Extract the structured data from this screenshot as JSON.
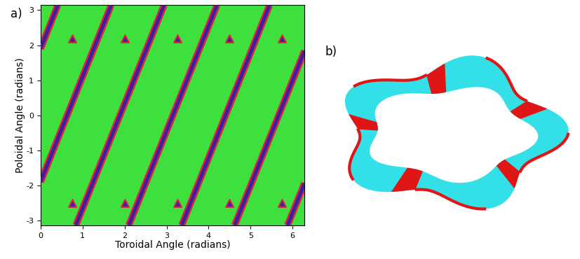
{
  "chart_data": [
    {
      "type": "line",
      "title": "a)",
      "x_label": "Toroidal Angle (radians)",
      "y_label": "Poloidal Angle (radians)",
      "xlim": [
        0,
        6.2832
      ],
      "ylim": [
        -3.1416,
        3.1416
      ],
      "xticks": [
        0,
        1,
        2,
        3,
        4,
        5,
        6
      ],
      "yticks": [
        -3,
        -2,
        -1,
        0,
        1,
        2,
        3
      ],
      "color": "#3ee03e",
      "series": [
        {
          "color": "#3a1fa0",
          "x": [
            0,
            0.41
          ],
          "values": [
            1.9,
            3.1416
          ]
        },
        {
          "color": "#3a1fa0",
          "x": [
            0,
            1.68
          ],
          "values": [
            -1.9,
            3.1416
          ]
        },
        {
          "color": "#3a1fa0",
          "x": [
            0.84,
            2.94
          ],
          "values": [
            -3.1416,
            3.1416
          ]
        },
        {
          "color": "#3a1fa0",
          "x": [
            2.1,
            4.2
          ],
          "values": [
            -3.1416,
            3.1416
          ]
        },
        {
          "color": "#3a1fa0",
          "x": [
            3.36,
            5.45
          ],
          "values": [
            -3.1416,
            3.1416
          ]
        },
        {
          "color": "#3a1fa0",
          "x": [
            4.62,
            6.2832
          ],
          "values": [
            -3.1416,
            1.84
          ]
        },
        {
          "color": "#3a1fa0",
          "x": [
            5.88,
            6.2832
          ],
          "values": [
            -3.1416,
            -1.94
          ]
        },
        {
          "type": "scatter",
          "marker": "^",
          "color": "#3a1fa0",
          "x": [
            0.75,
            2.0,
            3.25,
            4.5,
            5.75,
            0.75,
            2.0,
            3.25,
            4.5,
            5.75
          ],
          "values": [
            2.2,
            2.2,
            2.2,
            2.2,
            2.2,
            -2.5,
            -2.5,
            -2.5,
            -2.5,
            -2.5
          ]
        }
      ]
    },
    {
      "type": "image",
      "title": "b)"
    }
  ]
}
